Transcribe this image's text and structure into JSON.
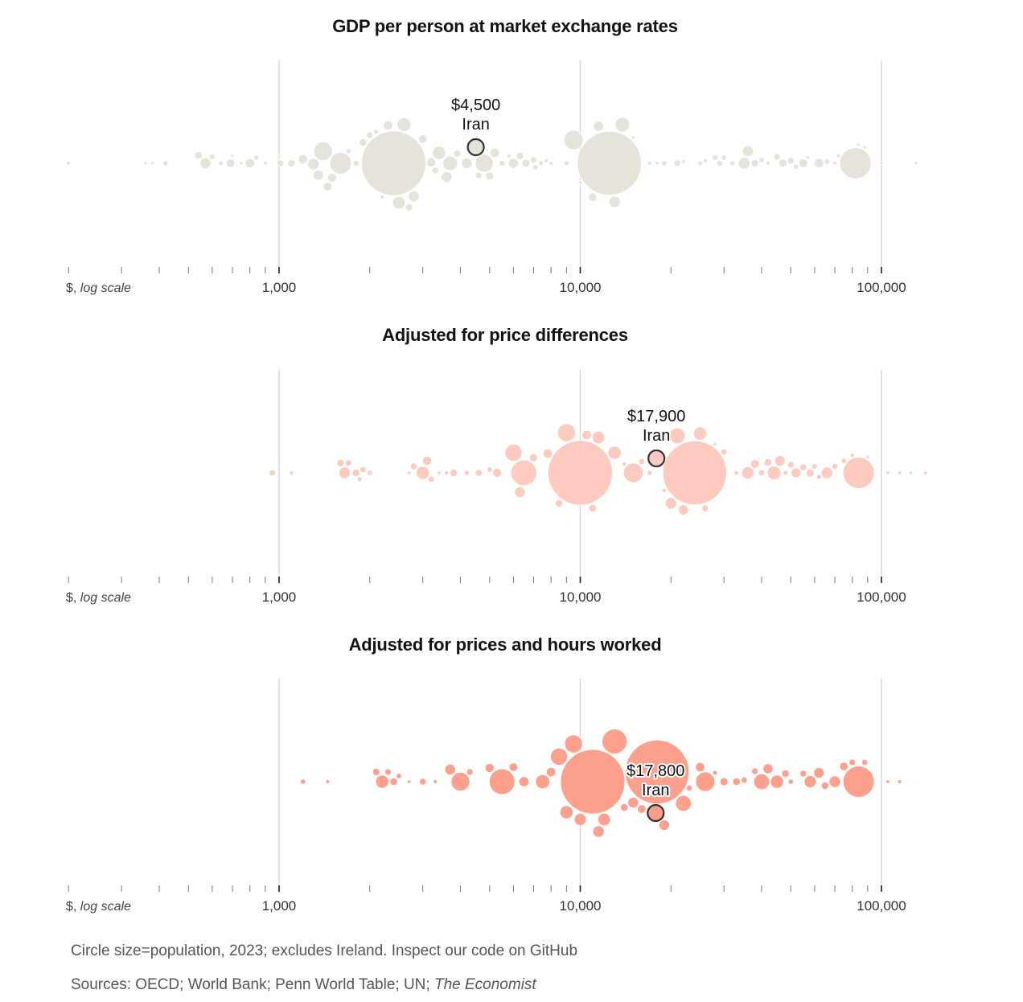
{
  "chart_data": [
    {
      "type": "scatter",
      "subtype": "beeswarm",
      "title": "GDP per person at market exchange rates",
      "xscale": "log",
      "xlim": [
        200,
        140000
      ],
      "xlabel_caption_prefix": "$, ",
      "xlabel_caption_italic": "log scale",
      "major_ticks": [
        1000,
        10000,
        100000
      ],
      "major_tick_labels": [
        "1,000",
        "10,000",
        "100,000"
      ],
      "minor_ticks": [
        200,
        300,
        400,
        500,
        600,
        700,
        800,
        900,
        2000,
        3000,
        4000,
        5000,
        6000,
        7000,
        8000,
        9000,
        20000,
        30000,
        40000,
        50000,
        60000,
        70000,
        80000,
        90000
      ],
      "color": "#e6e4da",
      "highlight": {
        "label": "Iran",
        "value_label": "$4,500",
        "value": 4500,
        "pop": 89
      },
      "points": [
        [
          200,
          5
        ],
        [
          360,
          4
        ],
        [
          380,
          3
        ],
        [
          420,
          10
        ],
        [
          540,
          20
        ],
        [
          570,
          40
        ],
        [
          600,
          12
        ],
        [
          640,
          8
        ],
        [
          690,
          25
        ],
        [
          700,
          3
        ],
        [
          750,
          4
        ],
        [
          800,
          30
        ],
        [
          840,
          8
        ],
        [
          900,
          5
        ],
        [
          1000,
          3
        ],
        [
          1010,
          15
        ],
        [
          1100,
          20
        ],
        [
          1200,
          30
        ],
        [
          1300,
          45
        ],
        [
          1350,
          35
        ],
        [
          1400,
          120
        ],
        [
          1450,
          25
        ],
        [
          1500,
          28
        ],
        [
          1600,
          160
        ],
        [
          1700,
          9
        ],
        [
          1800,
          12
        ],
        [
          1900,
          20
        ],
        [
          2000,
          14
        ],
        [
          2100,
          8
        ],
        [
          2200,
          5
        ],
        [
          2300,
          30
        ],
        [
          2400,
          1430
        ],
        [
          2500,
          55
        ],
        [
          2600,
          65
        ],
        [
          2700,
          18
        ],
        [
          2800,
          40
        ],
        [
          3000,
          25
        ],
        [
          3200,
          28
        ],
        [
          3300,
          16
        ],
        [
          3400,
          60
        ],
        [
          3600,
          40
        ],
        [
          3700,
          72
        ],
        [
          3900,
          18
        ],
        [
          4200,
          38
        ],
        [
          4600,
          14
        ],
        [
          4800,
          110
        ],
        [
          5000,
          22
        ],
        [
          5200,
          30
        ],
        [
          5500,
          12
        ],
        [
          5800,
          6
        ],
        [
          6000,
          34
        ],
        [
          6300,
          18
        ],
        [
          6600,
          22
        ],
        [
          7000,
          14
        ],
        [
          7100,
          10
        ],
        [
          7400,
          8
        ],
        [
          7700,
          6
        ],
        [
          8000,
          5
        ],
        [
          9000,
          8
        ],
        [
          9500,
          128
        ],
        [
          10000,
          5
        ],
        [
          11000,
          25
        ],
        [
          11500,
          35
        ],
        [
          12500,
          1410
        ],
        [
          13000,
          45
        ],
        [
          13800,
          72
        ],
        [
          15000,
          4
        ],
        [
          17000,
          6
        ],
        [
          18000,
          3
        ],
        [
          19000,
          10
        ],
        [
          21000,
          15
        ],
        [
          22000,
          5
        ],
        [
          25000,
          8
        ],
        [
          26000,
          6
        ],
        [
          28000,
          11
        ],
        [
          29000,
          12
        ],
        [
          30000,
          10
        ],
        [
          32000,
          9
        ],
        [
          35000,
          47
        ],
        [
          36000,
          40
        ],
        [
          38000,
          18
        ],
        [
          40000,
          10
        ],
        [
          42000,
          6
        ],
        [
          45000,
          14
        ],
        [
          47000,
          22
        ],
        [
          50000,
          16
        ],
        [
          52000,
          9
        ],
        [
          55000,
          25
        ],
        [
          57000,
          5
        ],
        [
          62000,
          30
        ],
        [
          66000,
          10
        ],
        [
          70000,
          6
        ],
        [
          72000,
          5
        ],
        [
          82000,
          335
        ],
        [
          84000,
          4
        ],
        [
          88000,
          5
        ],
        [
          100000,
          3
        ],
        [
          130000,
          2
        ]
      ]
    },
    {
      "type": "scatter",
      "subtype": "beeswarm",
      "title": "Adjusted for price differences",
      "xscale": "log",
      "xlim": [
        200,
        140000
      ],
      "xlabel_caption_prefix": "$, ",
      "xlabel_caption_italic": "log scale",
      "major_ticks": [
        1000,
        10000,
        100000
      ],
      "major_tick_labels": [
        "1,000",
        "10,000",
        "100,000"
      ],
      "minor_ticks": [
        200,
        300,
        400,
        500,
        600,
        700,
        800,
        900,
        2000,
        3000,
        4000,
        5000,
        6000,
        7000,
        8000,
        9000,
        20000,
        30000,
        40000,
        50000,
        60000,
        70000,
        80000,
        90000
      ],
      "color": "#fdcbbf",
      "highlight": {
        "label": "Iran",
        "value_label": "$17,900",
        "value": 17900,
        "pop": 89
      },
      "points": [
        [
          950,
          12
        ],
        [
          1100,
          6
        ],
        [
          1600,
          18
        ],
        [
          1650,
          45
        ],
        [
          1700,
          14
        ],
        [
          1800,
          20
        ],
        [
          1850,
          8
        ],
        [
          1900,
          12
        ],
        [
          2000,
          10
        ],
        [
          2700,
          3
        ],
        [
          2800,
          16
        ],
        [
          3000,
          60
        ],
        [
          3100,
          28
        ],
        [
          3200,
          12
        ],
        [
          3400,
          4
        ],
        [
          3600,
          6
        ],
        [
          3800,
          20
        ],
        [
          4200,
          8
        ],
        [
          4600,
          16
        ],
        [
          5000,
          10
        ],
        [
          5300,
          28
        ],
        [
          6000,
          100
        ],
        [
          6300,
          40
        ],
        [
          6500,
          225
        ],
        [
          7000,
          22
        ],
        [
          7800,
          30
        ],
        [
          8500,
          18
        ],
        [
          9000,
          110
        ],
        [
          10000,
          1430
        ],
        [
          10500,
          30
        ],
        [
          11000,
          20
        ],
        [
          11500,
          55
        ],
        [
          13000,
          60
        ],
        [
          14000,
          5
        ],
        [
          15000,
          130
        ],
        [
          16000,
          12
        ],
        [
          17000,
          10
        ],
        [
          19000,
          6
        ],
        [
          20000,
          45
        ],
        [
          21000,
          85
        ],
        [
          22000,
          35
        ],
        [
          24000,
          1410
        ],
        [
          25000,
          58
        ],
        [
          26000,
          15
        ],
        [
          28000,
          4
        ],
        [
          30000,
          12
        ],
        [
          33000,
          8
        ],
        [
          36000,
          50
        ],
        [
          38000,
          25
        ],
        [
          40000,
          12
        ],
        [
          42000,
          20
        ],
        [
          44000,
          65
        ],
        [
          46000,
          38
        ],
        [
          48000,
          8
        ],
        [
          50000,
          14
        ],
        [
          52000,
          33
        ],
        [
          55000,
          15
        ],
        [
          58000,
          22
        ],
        [
          60000,
          10
        ],
        [
          62000,
          8
        ],
        [
          66000,
          45
        ],
        [
          70000,
          12
        ],
        [
          75000,
          9
        ],
        [
          80000,
          6
        ],
        [
          84000,
          335
        ],
        [
          90000,
          4
        ],
        [
          105000,
          2
        ],
        [
          115000,
          2
        ],
        [
          125000,
          2
        ],
        [
          140000,
          4
        ]
      ]
    },
    {
      "type": "scatter",
      "subtype": "beeswarm",
      "title": "Adjusted for prices and hours worked",
      "xscale": "log",
      "xlim": [
        200,
        140000
      ],
      "xlabel_caption_prefix": "$, ",
      "xlabel_caption_italic": "log scale",
      "major_ticks": [
        1000,
        10000,
        100000
      ],
      "major_tick_labels": [
        "1,000",
        "10,000",
        "100,000"
      ],
      "minor_ticks": [
        200,
        300,
        400,
        500,
        600,
        700,
        800,
        900,
        2000,
        3000,
        4000,
        5000,
        6000,
        7000,
        8000,
        9000,
        20000,
        30000,
        40000,
        50000,
        60000,
        70000,
        80000,
        90000
      ],
      "color": "#fda08d",
      "highlight": {
        "label": "Iran",
        "value_label": "$17,800",
        "value": 17800,
        "pop": 89
      },
      "points": [
        [
          1200,
          10
        ],
        [
          1450,
          5
        ],
        [
          2100,
          18
        ],
        [
          2200,
          60
        ],
        [
          2300,
          14
        ],
        [
          2400,
          20
        ],
        [
          2500,
          10
        ],
        [
          2700,
          3
        ],
        [
          3000,
          16
        ],
        [
          3300,
          5
        ],
        [
          3700,
          40
        ],
        [
          4000,
          120
        ],
        [
          4300,
          14
        ],
        [
          5000,
          28
        ],
        [
          5500,
          225
        ],
        [
          6000,
          25
        ],
        [
          6500,
          35
        ],
        [
          7500,
          70
        ],
        [
          8000,
          30
        ],
        [
          8500,
          100
        ],
        [
          9000,
          60
        ],
        [
          9500,
          110
        ],
        [
          10000,
          50
        ],
        [
          11000,
          1430
        ],
        [
          11500,
          45
        ],
        [
          12000,
          55
        ],
        [
          13000,
          215
        ],
        [
          14000,
          20
        ],
        [
          15000,
          40
        ],
        [
          16000,
          25
        ],
        [
          18000,
          1410
        ],
        [
          19000,
          38
        ],
        [
          22000,
          85
        ],
        [
          23000,
          12
        ],
        [
          25000,
          30
        ],
        [
          26000,
          128
        ],
        [
          28000,
          8
        ],
        [
          30000,
          22
        ],
        [
          33000,
          20
        ],
        [
          35000,
          13
        ],
        [
          38000,
          15
        ],
        [
          40000,
          85
        ],
        [
          42000,
          35
        ],
        [
          45000,
          60
        ],
        [
          48000,
          20
        ],
        [
          50000,
          10
        ],
        [
          55000,
          15
        ],
        [
          58000,
          50
        ],
        [
          62000,
          38
        ],
        [
          65000,
          20
        ],
        [
          70000,
          45
        ],
        [
          75000,
          25
        ],
        [
          80000,
          14
        ],
        [
          84000,
          335
        ],
        [
          88000,
          12
        ],
        [
          105000,
          3
        ],
        [
          115000,
          5
        ]
      ]
    }
  ],
  "footer": {
    "note": "Circle size=population, 2023; excludes Ireland. Inspect our code on GitHub",
    "sources_prefix": "Sources: OECD; World Bank; Penn World Table; UN; ",
    "sources_italic": "The Economist"
  }
}
